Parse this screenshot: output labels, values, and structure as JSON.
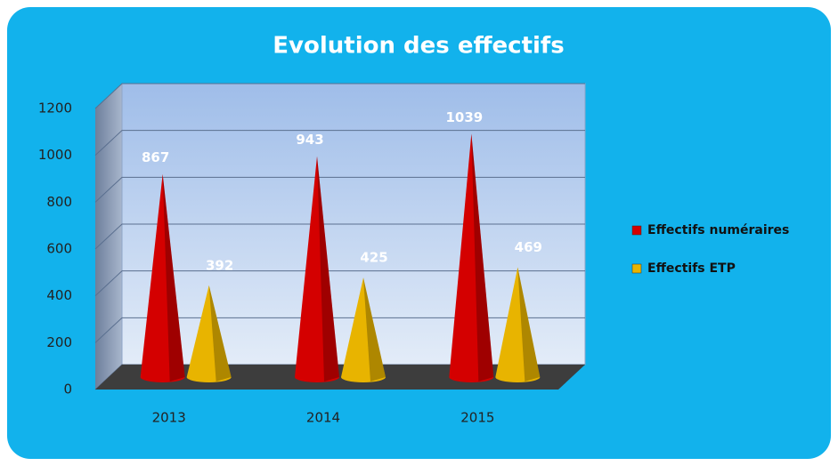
{
  "chart_data": {
    "type": "cone",
    "title": "Evolution des effectifs",
    "categories": [
      "2013",
      "2014",
      "2015"
    ],
    "series": [
      {
        "name": "Effectifs numéraires",
        "color": "#d40000",
        "values": [
          867,
          943,
          1039
        ]
      },
      {
        "name": "Effectifs ETP",
        "color": "#e8b400",
        "values": [
          392,
          425,
          469
        ]
      }
    ],
    "ylim": [
      0,
      1200
    ],
    "yticks": [
      0,
      200,
      400,
      600,
      800,
      1000,
      1200
    ],
    "grid": true,
    "legend": "right"
  }
}
